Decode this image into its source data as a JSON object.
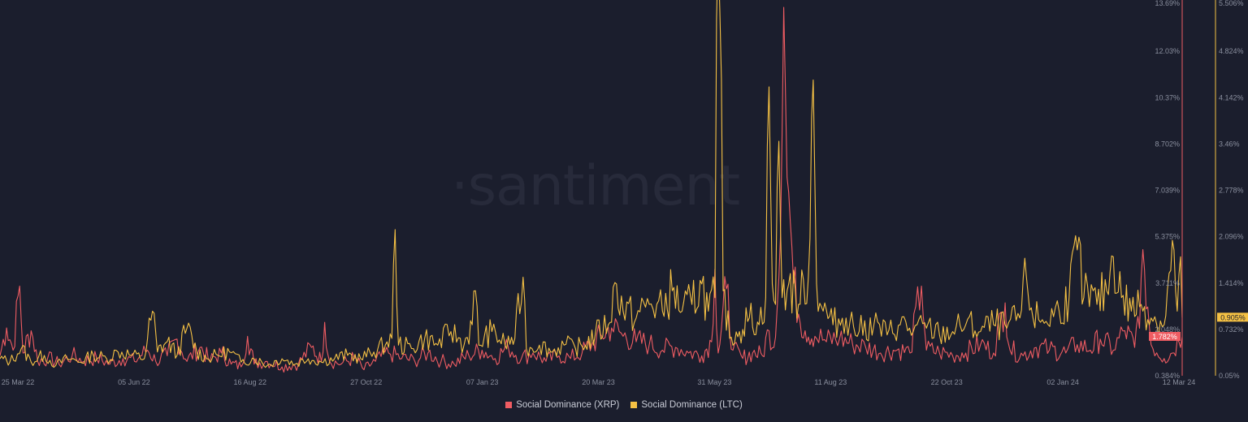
{
  "colors": {
    "background": "#1b1e2d",
    "xrp": "#ef5c62",
    "ltc": "#f5c144",
    "tick_text": "#8a8f9e",
    "watermark": "#272a3a"
  },
  "watermark": "·santiment",
  "legend": [
    {
      "label": "Social Dominance (XRP)",
      "color": "#ef5c62"
    },
    {
      "label": "Social Dominance (LTC)",
      "color": "#f5c144"
    }
  ],
  "chart_data": {
    "type": "line",
    "title": "",
    "x_tick_labels": [
      "25 Mar 22",
      "05 Jun 22",
      "16 Aug 22",
      "27 Oct 22",
      "07 Jan 23",
      "20 Mar 23",
      "31 May 23",
      "11 Aug 23",
      "22 Oct 23",
      "02 Jan 24",
      "12 Mar 24"
    ],
    "x_range": [
      "2022-03-22",
      "2024-03-12"
    ],
    "grid": false,
    "legend_placement": "bottom-center",
    "y_axes": [
      {
        "series": "Social Dominance (XRP)",
        "side": "right-inner",
        "min": 0.384,
        "max": 13.69,
        "tick_labels": [
          "13.69%",
          "12.03%",
          "10.37%",
          "8.702%",
          "7.039%",
          "5.375%",
          "3.711%",
          "2.048%",
          "0.384%"
        ]
      },
      {
        "series": "Social Dominance (LTC)",
        "side": "right-outer",
        "min": 0.05,
        "max": 5.506,
        "tick_labels": [
          "5.506%",
          "4.824%",
          "4.142%",
          "3.46%",
          "2.778%",
          "2.096%",
          "1.414%",
          "0.732%",
          "0.05%"
        ]
      }
    ],
    "last_value_labels": [
      {
        "series": "Social Dominance (XRP)",
        "value": 1.782,
        "label": "1.782%"
      },
      {
        "series": "Social Dominance (LTC)",
        "value": 0.905,
        "label": "0.905%"
      }
    ],
    "series": [
      {
        "name": "Social Dominance (XRP)",
        "color": "#ef5c62",
        "axis": 0,
        "points": [
          [
            "2022-03-22",
            1.1
          ],
          [
            "2022-03-26",
            2.1
          ],
          [
            "2022-03-30",
            1.3
          ],
          [
            "2022-04-03",
            3.6
          ],
          [
            "2022-04-05",
            1.2
          ],
          [
            "2022-04-10",
            2.0
          ],
          [
            "2022-04-14",
            0.9
          ],
          [
            "2022-04-20",
            1.0
          ],
          [
            "2022-04-27",
            0.8
          ],
          [
            "2022-05-05",
            1.1
          ],
          [
            "2022-05-12",
            0.9
          ],
          [
            "2022-05-20",
            1.0
          ],
          [
            "2022-05-28",
            0.8
          ],
          [
            "2022-06-05",
            1.0
          ],
          [
            "2022-06-12",
            0.9
          ],
          [
            "2022-06-20",
            1.3
          ],
          [
            "2022-06-25",
            0.9
          ],
          [
            "2022-07-02",
            1.1
          ],
          [
            "2022-07-08",
            1.7
          ],
          [
            "2022-07-14",
            0.9
          ],
          [
            "2022-07-22",
            1.4
          ],
          [
            "2022-07-28",
            0.9
          ],
          [
            "2022-08-04",
            1.2
          ],
          [
            "2022-08-10",
            0.8
          ],
          [
            "2022-08-16",
            0.7
          ],
          [
            "2022-08-20",
            1.8
          ],
          [
            "2022-08-24",
            0.8
          ],
          [
            "2022-09-01",
            0.9
          ],
          [
            "2022-09-10",
            0.7
          ],
          [
            "2022-09-20",
            0.8
          ],
          [
            "2022-09-28",
            1.4
          ],
          [
            "2022-10-04",
            0.9
          ],
          [
            "2022-10-06",
            2.3
          ],
          [
            "2022-10-09",
            0.9
          ],
          [
            "2022-10-16",
            0.8
          ],
          [
            "2022-10-24",
            1.0
          ],
          [
            "2022-10-30",
            0.6
          ],
          [
            "2022-11-06",
            0.9
          ],
          [
            "2022-11-14",
            1.2
          ],
          [
            "2022-11-22",
            1.0
          ],
          [
            "2022-11-30",
            0.9
          ],
          [
            "2022-12-08",
            1.2
          ],
          [
            "2022-12-16",
            0.9
          ],
          [
            "2022-12-24",
            0.8
          ],
          [
            "2023-01-02",
            1.1
          ],
          [
            "2023-01-10",
            1.3
          ],
          [
            "2023-01-18",
            1.0
          ],
          [
            "2023-01-26",
            1.4
          ],
          [
            "2023-02-03",
            1.0
          ],
          [
            "2023-02-10",
            1.2
          ],
          [
            "2023-02-18",
            0.9
          ],
          [
            "2023-02-26",
            1.1
          ],
          [
            "2023-03-05",
            1.0
          ],
          [
            "2023-03-12",
            1.2
          ],
          [
            "2023-03-18",
            1.5
          ],
          [
            "2023-03-24",
            1.8
          ],
          [
            "2023-03-30",
            2.1
          ],
          [
            "2023-04-06",
            1.8
          ],
          [
            "2023-04-14",
            1.6
          ],
          [
            "2023-04-22",
            1.5
          ],
          [
            "2023-04-30",
            1.3
          ],
          [
            "2023-05-08",
            1.4
          ],
          [
            "2023-05-16",
            1.2
          ],
          [
            "2023-05-24",
            1.1
          ],
          [
            "2023-05-30",
            1.6
          ],
          [
            "2023-06-01",
            4.2
          ],
          [
            "2023-06-03",
            1.2
          ],
          [
            "2023-06-08",
            3.5
          ],
          [
            "2023-06-12",
            1.3
          ],
          [
            "2023-06-18",
            1.0
          ],
          [
            "2023-06-24",
            1.2
          ],
          [
            "2023-06-30",
            1.1
          ],
          [
            "2023-07-04",
            2.0
          ],
          [
            "2023-07-07",
            1.4
          ],
          [
            "2023-07-10",
            3.9
          ],
          [
            "2023-07-13",
            13.6
          ],
          [
            "2023-07-15",
            7.5
          ],
          [
            "2023-07-17",
            5.9
          ],
          [
            "2023-07-19",
            3.7
          ],
          [
            "2023-07-22",
            2.6
          ],
          [
            "2023-07-26",
            2.0
          ],
          [
            "2023-08-01",
            1.8
          ],
          [
            "2023-08-08",
            1.6
          ],
          [
            "2023-08-16",
            1.7
          ],
          [
            "2023-08-24",
            1.5
          ],
          [
            "2023-09-01",
            1.4
          ],
          [
            "2023-09-10",
            1.2
          ],
          [
            "2023-09-20",
            1.3
          ],
          [
            "2023-09-28",
            1.2
          ],
          [
            "2023-10-05",
            3.6
          ],
          [
            "2023-10-08",
            1.3
          ],
          [
            "2023-10-16",
            1.2
          ],
          [
            "2023-10-24",
            1.1
          ],
          [
            "2023-11-01",
            1.2
          ],
          [
            "2023-11-10",
            1.5
          ],
          [
            "2023-11-18",
            1.2
          ],
          [
            "2023-11-25",
            3.0
          ],
          [
            "2023-11-28",
            1.3
          ],
          [
            "2023-12-06",
            1.1
          ],
          [
            "2023-12-14",
            1.4
          ],
          [
            "2023-12-22",
            1.3
          ],
          [
            "2024-01-01",
            1.2
          ],
          [
            "2024-01-08",
            1.5
          ],
          [
            "2024-01-16",
            1.3
          ],
          [
            "2024-01-22",
            1.7
          ],
          [
            "2024-01-30",
            1.3
          ],
          [
            "2024-02-06",
            2.0
          ],
          [
            "2024-02-12",
            1.4
          ],
          [
            "2024-02-18",
            4.2
          ],
          [
            "2024-02-22",
            1.5
          ],
          [
            "2024-03-01",
            1.0
          ],
          [
            "2024-03-06",
            1.2
          ],
          [
            "2024-03-10",
            1.6
          ],
          [
            "2024-03-12",
            1.782
          ]
        ]
      },
      {
        "name": "Social Dominance (LTC)",
        "color": "#f5c144",
        "axis": 1,
        "points": [
          [
            "2022-03-22",
            0.3
          ],
          [
            "2022-03-28",
            0.25
          ],
          [
            "2022-04-04",
            0.45
          ],
          [
            "2022-04-10",
            0.25
          ],
          [
            "2022-04-18",
            0.35
          ],
          [
            "2022-04-25",
            0.2
          ],
          [
            "2022-05-02",
            0.3
          ],
          [
            "2022-05-10",
            0.25
          ],
          [
            "2022-05-18",
            0.35
          ],
          [
            "2022-05-26",
            0.3
          ],
          [
            "2022-06-02",
            0.4
          ],
          [
            "2022-06-10",
            0.35
          ],
          [
            "2022-06-18",
            0.3
          ],
          [
            "2022-06-23",
            1.0
          ],
          [
            "2022-06-26",
            0.4
          ],
          [
            "2022-07-02",
            0.55
          ],
          [
            "2022-07-08",
            0.35
          ],
          [
            "2022-07-14",
            0.75
          ],
          [
            "2022-07-20",
            0.4
          ],
          [
            "2022-07-26",
            0.3
          ],
          [
            "2022-08-02",
            0.35
          ],
          [
            "2022-08-09",
            0.4
          ],
          [
            "2022-08-16",
            0.25
          ],
          [
            "2022-08-24",
            0.3
          ],
          [
            "2022-09-01",
            0.2
          ],
          [
            "2022-09-10",
            0.3
          ],
          [
            "2022-09-18",
            0.22
          ],
          [
            "2022-09-26",
            0.3
          ],
          [
            "2022-10-04",
            0.25
          ],
          [
            "2022-10-12",
            0.3
          ],
          [
            "2022-10-20",
            0.35
          ],
          [
            "2022-10-28",
            0.3
          ],
          [
            "2022-11-05",
            0.4
          ],
          [
            "2022-11-12",
            0.5
          ],
          [
            "2022-11-16",
            0.6
          ],
          [
            "2022-11-18",
            2.2
          ],
          [
            "2022-11-20",
            0.5
          ],
          [
            "2022-11-28",
            0.45
          ],
          [
            "2022-12-06",
            0.6
          ],
          [
            "2022-12-14",
            0.5
          ],
          [
            "2022-12-22",
            0.7
          ],
          [
            "2022-12-30",
            0.5
          ],
          [
            "2023-01-04",
            0.8
          ],
          [
            "2023-01-06",
            1.3
          ],
          [
            "2023-01-08",
            0.5
          ],
          [
            "2023-01-16",
            0.7
          ],
          [
            "2023-01-24",
            0.5
          ],
          [
            "2023-01-30",
            0.6
          ],
          [
            "2023-02-04",
            1.5
          ],
          [
            "2023-02-06",
            0.45
          ],
          [
            "2023-02-14",
            0.5
          ],
          [
            "2023-02-22",
            0.4
          ],
          [
            "2023-03-01",
            0.5
          ],
          [
            "2023-03-08",
            0.45
          ],
          [
            "2023-03-14",
            0.5
          ],
          [
            "2023-03-20",
            0.65
          ],
          [
            "2023-03-28",
            0.8
          ],
          [
            "2023-04-02",
            1.4
          ],
          [
            "2023-04-06",
            1.0
          ],
          [
            "2023-04-14",
            0.9
          ],
          [
            "2023-04-22",
            1.1
          ],
          [
            "2023-04-30",
            1.0
          ],
          [
            "2023-05-06",
            1.3
          ],
          [
            "2023-05-12",
            1.0
          ],
          [
            "2023-05-18",
            1.1
          ],
          [
            "2023-05-24",
            1.4
          ],
          [
            "2023-05-28",
            1.0
          ],
          [
            "2023-06-01",
            1.2
          ],
          [
            "2023-06-02",
            5.3
          ],
          [
            "2023-06-04",
            5.45
          ],
          [
            "2023-06-06",
            1.3
          ],
          [
            "2023-06-10",
            0.6
          ],
          [
            "2023-06-16",
            0.7
          ],
          [
            "2023-06-22",
            0.9
          ],
          [
            "2023-06-28",
            0.8
          ],
          [
            "2023-07-02",
            1.2
          ],
          [
            "2023-07-04",
            4.3
          ],
          [
            "2023-07-06",
            1.4
          ],
          [
            "2023-07-08",
            1.1
          ],
          [
            "2023-07-10",
            3.5
          ],
          [
            "2023-07-12",
            1.2
          ],
          [
            "2023-07-16",
            1.4
          ],
          [
            "2023-07-22",
            1.1
          ],
          [
            "2023-07-28",
            1.5
          ],
          [
            "2023-07-31",
            4.4
          ],
          [
            "2023-08-02",
            1.4
          ],
          [
            "2023-08-06",
            1.0
          ],
          [
            "2023-08-12",
            0.8
          ],
          [
            "2023-08-20",
            0.9
          ],
          [
            "2023-08-28",
            0.7
          ],
          [
            "2023-09-06",
            0.8
          ],
          [
            "2023-09-14",
            0.65
          ],
          [
            "2023-09-22",
            0.8
          ],
          [
            "2023-09-30",
            0.7
          ],
          [
            "2023-10-08",
            0.75
          ],
          [
            "2023-10-16",
            0.65
          ],
          [
            "2023-10-24",
            0.7
          ],
          [
            "2023-11-01",
            0.8
          ],
          [
            "2023-11-10",
            0.7
          ],
          [
            "2023-11-18",
            0.8
          ],
          [
            "2023-11-26",
            0.75
          ],
          [
            "2023-12-04",
            0.9
          ],
          [
            "2023-12-08",
            1.5
          ],
          [
            "2023-12-12",
            0.9
          ],
          [
            "2023-12-20",
            0.85
          ],
          [
            "2023-12-28",
            1.0
          ],
          [
            "2024-01-03",
            1.2
          ],
          [
            "2024-01-08",
            1.9
          ],
          [
            "2024-01-12",
            1.2
          ],
          [
            "2024-01-20",
            1.1
          ],
          [
            "2024-01-26",
            1.3
          ],
          [
            "2024-01-30",
            1.8
          ],
          [
            "2024-02-04",
            1.2
          ],
          [
            "2024-02-10",
            1.0
          ],
          [
            "2024-02-16",
            1.1
          ],
          [
            "2024-02-22",
            0.9
          ],
          [
            "2024-03-01",
            0.8
          ],
          [
            "2024-03-05",
            1.6
          ],
          [
            "2024-03-07",
            1.9
          ],
          [
            "2024-03-09",
            1.0
          ],
          [
            "2024-03-11",
            1.8
          ],
          [
            "2024-03-12",
            0.905
          ]
        ]
      }
    ]
  }
}
